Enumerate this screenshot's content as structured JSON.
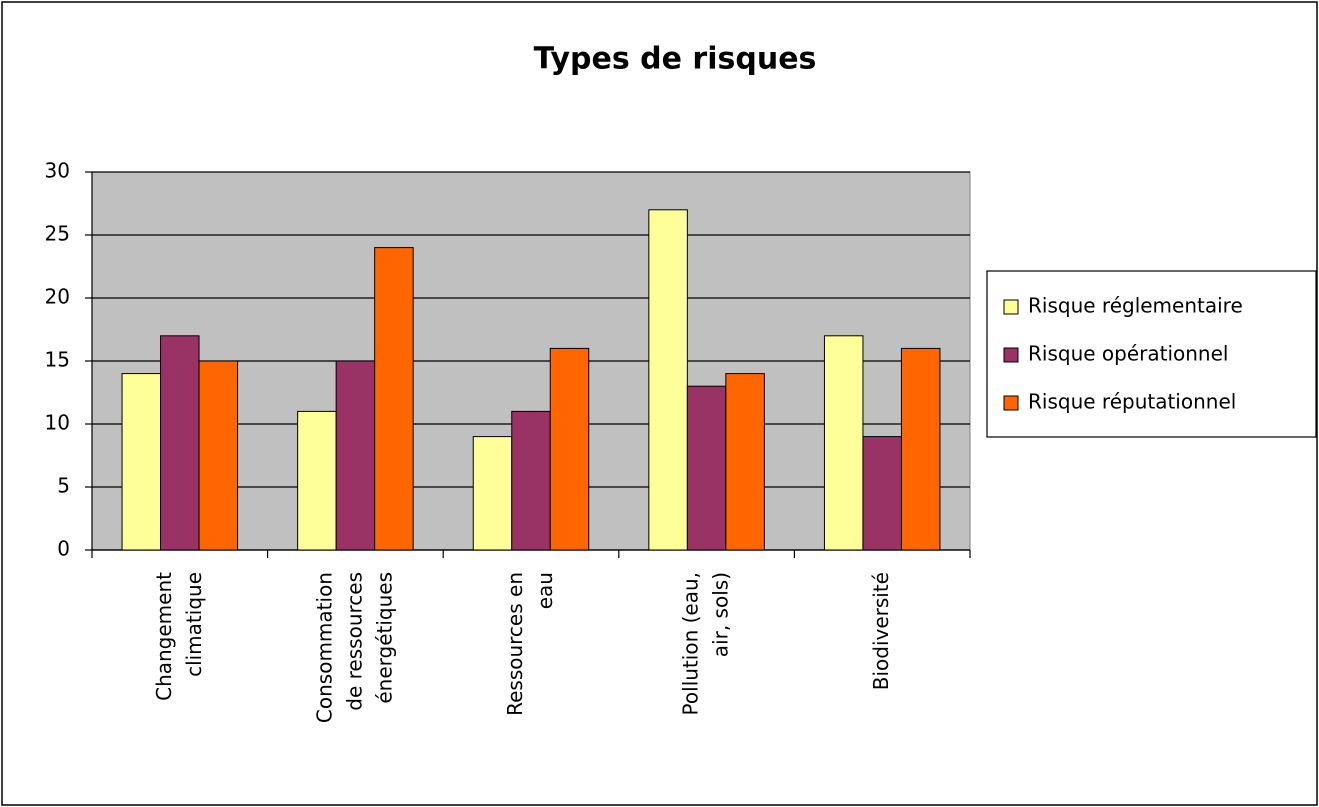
{
  "chart_data": {
    "type": "bar",
    "title": "Types de risques",
    "categories": [
      "Changement\nclimatique",
      "Consommation\nde ressources\nénergétiques",
      "Ressources en\neau",
      "Pollution (eau,\nair, sols)",
      "Biodiversité"
    ],
    "series": [
      {
        "name": "Risque réglementaire",
        "color": "#FFFF99",
        "values": [
          14,
          11,
          9,
          27,
          17
        ]
      },
      {
        "name": "Risque opérationnel",
        "color": "#993366",
        "values": [
          17,
          15,
          11,
          13,
          9
        ]
      },
      {
        "name": "Risque réputationnel",
        "color": "#FF6600",
        "values": [
          15,
          24,
          16,
          14,
          16
        ]
      }
    ],
    "ylim": [
      0,
      30
    ],
    "yticks": [
      0,
      5,
      10,
      15,
      20,
      25,
      30
    ],
    "grid": true,
    "legend": "right",
    "plot_background": "#C0C0C0"
  }
}
